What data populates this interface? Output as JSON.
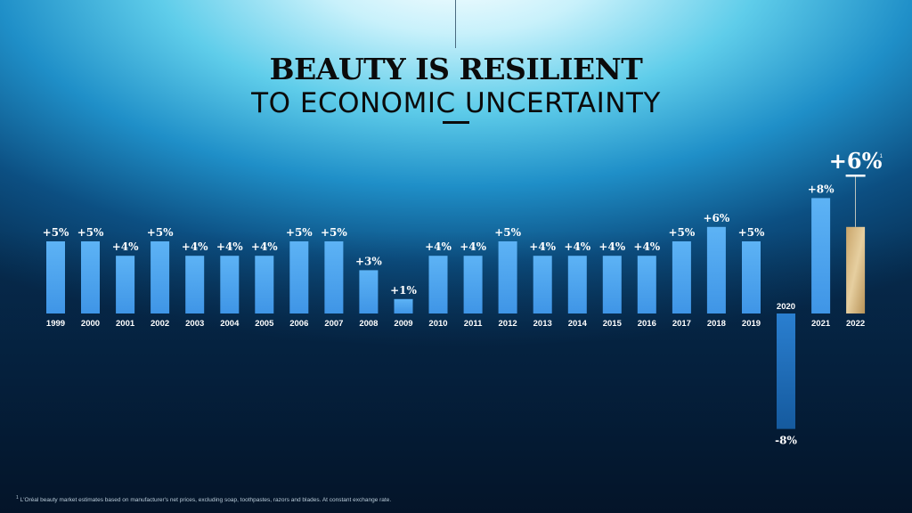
{
  "title": "BEAUTY IS RESILIENT",
  "subtitle": "TO ECONOMIC UNCERTAINTY",
  "footnote": "L'Oréal beauty market estimates based on manufacturer's net prices, excluding soap, toothpastes, razors and blades. At constant exchange rate.",
  "footnote_marker": "1",
  "colors": {
    "bar": "#4aa3ef",
    "bar_negative": "#1f6cc0",
    "bar_highlight": "#d6b987",
    "label": "#ffffff",
    "tick": "#ffffff"
  },
  "chart_data": {
    "type": "bar",
    "categories": [
      "1999",
      "2000",
      "2001",
      "2002",
      "2003",
      "2004",
      "2005",
      "2006",
      "2007",
      "2008",
      "2009",
      "2010",
      "2011",
      "2012",
      "2013",
      "2014",
      "2015",
      "2016",
      "2017",
      "2018",
      "2019",
      "2020",
      "2021",
      "2022"
    ],
    "values": [
      5,
      5,
      4,
      5,
      4,
      4,
      4,
      5,
      5,
      3,
      1,
      4,
      4,
      5,
      4,
      4,
      4,
      4,
      5,
      6,
      5,
      -8,
      8,
      6
    ],
    "data_labels": [
      "+5%",
      "+5%",
      "+4%",
      "+5%",
      "+4%",
      "+4%",
      "+4%",
      "+5%",
      "+5%",
      "+3%",
      "+1%",
      "+4%",
      "+4%",
      "+5%",
      "+4%",
      "+4%",
      "+4%",
      "+4%",
      "+5%",
      "+6%",
      "+5%",
      "-8%",
      "+8%",
      "+6%"
    ],
    "highlight": {
      "category": "2022",
      "label": "+6%",
      "marker": "1"
    },
    "unit": "%",
    "ylim": [
      -8,
      8
    ],
    "grid": false,
    "legend": "none"
  }
}
